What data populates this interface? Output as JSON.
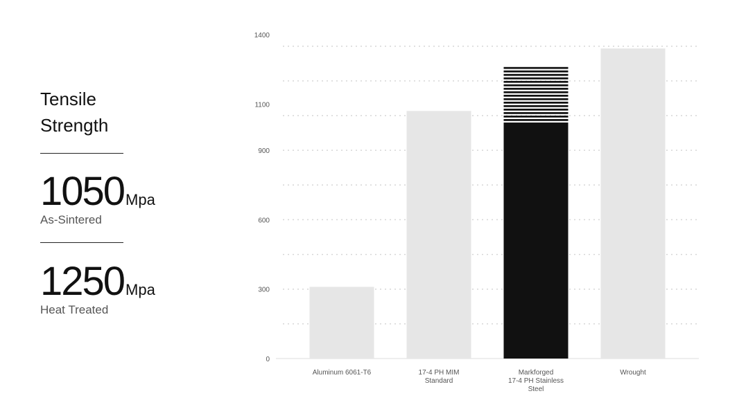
{
  "summary": {
    "title_line1": "Tensile",
    "title_line2": "Strength",
    "stats": [
      {
        "value": "1050",
        "unit": "Mpa",
        "label": "As-Sintered"
      },
      {
        "value": "1250",
        "unit": "Mpa",
        "label": "Heat Treated"
      }
    ]
  },
  "colors": {
    "bar_light": "#e6e6e6",
    "bar_highlight": "#111111",
    "gridline": "#d6d6d6",
    "tick_text": "#555555"
  },
  "chart_data": {
    "type": "bar",
    "title": "",
    "xlabel": "",
    "ylabel": "",
    "ylim": [
      0,
      1400
    ],
    "yticks": [
      0,
      300,
      600,
      900,
      1100,
      1400
    ],
    "grid": true,
    "categories": [
      [
        "Aluminum 6061-T6"
      ],
      [
        "17-4 PH MIM",
        "Standard"
      ],
      [
        "Markforged",
        "17-4 PH Stainless",
        "Steel"
      ],
      [
        "Wrought"
      ]
    ],
    "series": [
      {
        "values": [
          310,
          1070,
          1020,
          1340
        ]
      }
    ],
    "annotations": [
      {
        "category_index": 2,
        "kind": "striped-extension",
        "from": 1020,
        "to": 1260
      }
    ]
  }
}
